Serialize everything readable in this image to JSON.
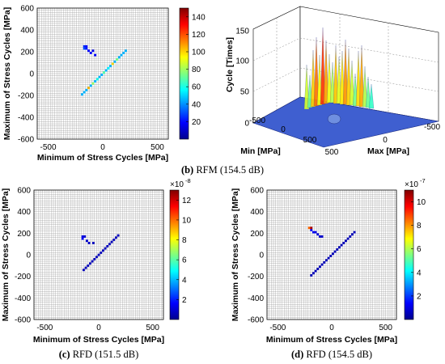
{
  "colors": {
    "grid_line": "#9a9a9a",
    "cell_low": "#00008f",
    "surface_base": "#3f5fd0"
  },
  "chart_data": [
    {
      "id": "b-left",
      "type": "heatmap",
      "xlabel": "Minimum of Stress Cycles [MPa]",
      "ylabel": "Maximum of Stress Cycles [MPa]",
      "xlim": [
        -600,
        600
      ],
      "ylim": [
        -600,
        600
      ],
      "xticks": [
        "-500",
        "0",
        "500"
      ],
      "xtick_values": [
        -500,
        0,
        500
      ],
      "yticks": [
        "600",
        "400",
        "200",
        "0",
        "-200",
        "-400",
        "-600"
      ],
      "ytick_values": [
        600,
        400,
        200,
        0,
        -200,
        -400,
        -600
      ],
      "colorbar": {
        "min": 0,
        "max": 150,
        "ticks": [
          "140",
          "120",
          "100",
          "80",
          "60",
          "40",
          "20"
        ],
        "tick_values": [
          140,
          120,
          100,
          80,
          60,
          40,
          20
        ],
        "exponent": ""
      },
      "cell_size": 20,
      "cells_diagonal": {
        "from": -200,
        "to": 200,
        "value": 45
      },
      "cells_cluster": [
        {
          "x": -170,
          "y": 250,
          "v": 25
        },
        {
          "x": -150,
          "y": 250,
          "v": 20
        },
        {
          "x": -170,
          "y": 230,
          "v": 30
        },
        {
          "x": -150,
          "y": 230,
          "v": 22
        },
        {
          "x": -130,
          "y": 210,
          "v": 18
        },
        {
          "x": -110,
          "y": 190,
          "v": 20
        },
        {
          "x": -90,
          "y": 210,
          "v": 15
        },
        {
          "x": -70,
          "y": 170,
          "v": 18
        }
      ],
      "cells_hot": [
        {
          "x": -130,
          "y": -130,
          "v": 105
        },
        {
          "x": -90,
          "y": -90,
          "v": 80
        },
        {
          "x": -50,
          "y": -50,
          "v": 60
        },
        {
          "x": 10,
          "y": 10,
          "v": 70
        },
        {
          "x": 50,
          "y": 50,
          "v": 55
        },
        {
          "x": 90,
          "y": 90,
          "v": 100
        },
        {
          "x": 130,
          "y": 130,
          "v": 75
        }
      ]
    },
    {
      "id": "b-right",
      "type": "surface",
      "xlabel": "Min [MPa]",
      "ylabel": "Max [MPa]",
      "zlabel": "Cycle [Times]",
      "zlim": [
        0,
        150
      ],
      "zticks": [
        "150",
        "100",
        "50",
        "0"
      ],
      "min_ticks": [
        "-500",
        "0",
        "500"
      ],
      "max_ticks": [
        "500",
        "0",
        "-500"
      ]
    },
    {
      "id": "c",
      "type": "heatmap",
      "xlabel": "Minimum of Stress Cycles [MPa]",
      "ylabel": "Maximum of Stress Cycles [MPa]",
      "xlim": [
        -600,
        600
      ],
      "ylim": [
        -600,
        600
      ],
      "xticks": [
        "-500",
        "0",
        "500"
      ],
      "xtick_values": [
        -500,
        0,
        500
      ],
      "yticks": [
        "600",
        "400",
        "200",
        "0",
        "-200",
        "-400",
        "-600"
      ],
      "ytick_values": [
        600,
        400,
        200,
        0,
        -200,
        -400,
        -600
      ],
      "colorbar": {
        "min": 0,
        "max": 13,
        "ticks": [
          "12",
          "10",
          "8",
          "6",
          "4",
          "2"
        ],
        "tick_values": [
          12,
          10,
          8,
          6,
          4,
          2
        ],
        "exponent": "-8"
      },
      "cell_size": 20,
      "cells_diagonal": {
        "from": -150,
        "to": 170,
        "value": 0.6
      },
      "cells_cluster": [
        {
          "x": -150,
          "y": 170,
          "v": 1.2
        },
        {
          "x": -130,
          "y": 170,
          "v": 1.0
        },
        {
          "x": -150,
          "y": 150,
          "v": 1.4
        },
        {
          "x": -110,
          "y": 130,
          "v": 0.9
        },
        {
          "x": -90,
          "y": 110,
          "v": 0.8
        },
        {
          "x": -50,
          "y": 110,
          "v": 0.7
        }
      ],
      "cells_hot": []
    },
    {
      "id": "d",
      "type": "heatmap",
      "xlabel": "Minimum of Stress Cycles [MPa]",
      "ylabel": "Maximum of Stress Cycles [MPa]",
      "xlim": [
        -600,
        600
      ],
      "ylim": [
        -600,
        600
      ],
      "xticks": [
        "-500",
        "0",
        "500"
      ],
      "xtick_values": [
        -500,
        0,
        500
      ],
      "yticks": [
        "600",
        "400",
        "200",
        "0",
        "-200",
        "-400",
        "-600"
      ],
      "ytick_values": [
        600,
        400,
        200,
        0,
        -200,
        -400,
        -600
      ],
      "colorbar": {
        "min": 0,
        "max": 11,
        "ticks": [
          "10",
          "8",
          "6",
          "4",
          "2"
        ],
        "tick_values": [
          10,
          8,
          6,
          4,
          2
        ],
        "exponent": "-7"
      },
      "cell_size": 20,
      "cells_diagonal": {
        "from": -200,
        "to": 200,
        "value": 0.5
      },
      "cells_cluster": [
        {
          "x": -190,
          "y": 230,
          "v": 1.5
        },
        {
          "x": -170,
          "y": 210,
          "v": 1.2
        },
        {
          "x": -150,
          "y": 210,
          "v": 1.0
        },
        {
          "x": -130,
          "y": 190,
          "v": 0.9
        },
        {
          "x": -110,
          "y": 170,
          "v": 0.8
        },
        {
          "x": -90,
          "y": 170,
          "v": 0.7
        }
      ],
      "cells_hot": [
        {
          "x": -210,
          "y": 250,
          "v": 8.5
        },
        {
          "x": -190,
          "y": 250,
          "v": 10.5
        }
      ]
    }
  ],
  "captions": {
    "b": {
      "label": "(b)",
      "text": "RFM (154.5 dB)"
    },
    "c": {
      "label": "(c)",
      "text": "RFD (151.5 dB)"
    },
    "d": {
      "label": "(d)",
      "text": "RFD (154.5 dB)"
    }
  }
}
